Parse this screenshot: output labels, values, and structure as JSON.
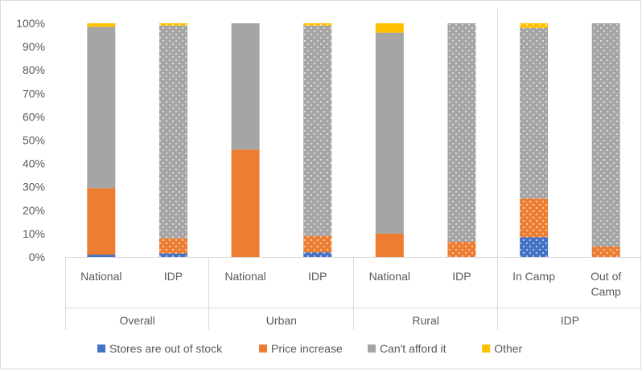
{
  "chart_data": {
    "type": "bar",
    "stacked": true,
    "percent_stacked": true,
    "ylim": [
      0,
      100
    ],
    "yticks": [
      "0%",
      "10%",
      "20%",
      "30%",
      "40%",
      "50%",
      "60%",
      "70%",
      "80%",
      "90%",
      "100%"
    ],
    "grid": false,
    "legend_position": "bottom",
    "groups": [
      {
        "label": "Overall",
        "categories": [
          {
            "label": "National",
            "pattern": false
          },
          {
            "label": "IDP",
            "pattern": true
          }
        ]
      },
      {
        "label": "Urban",
        "categories": [
          {
            "label": "National",
            "pattern": false
          },
          {
            "label": "IDP",
            "pattern": true
          }
        ]
      },
      {
        "label": "Rural",
        "categories": [
          {
            "label": "National",
            "pattern": false
          },
          {
            "label": "IDP",
            "pattern": true
          }
        ]
      },
      {
        "label": "IDP",
        "categories": [
          {
            "label": "In Camp",
            "pattern": true
          },
          {
            "label": "Out of Camp",
            "pattern": true
          }
        ]
      }
    ],
    "series": [
      {
        "name": "Stores are out of stock",
        "color": "#4472c4",
        "values": [
          1,
          1.5,
          0,
          2,
          0,
          0,
          8.5,
          0
        ]
      },
      {
        "name": "Price increase",
        "color": "#ed7d31",
        "values": [
          28.5,
          6.5,
          46,
          7,
          10,
          6.5,
          16.5,
          4.5
        ]
      },
      {
        "name": "Can't afford it",
        "color": "#a5a5a5",
        "values": [
          69,
          91,
          54,
          90,
          86,
          93.5,
          73,
          95.5
        ]
      },
      {
        "name": "Other",
        "color": "#ffc000",
        "values": [
          1.5,
          1,
          0,
          1,
          4,
          0,
          2,
          0
        ]
      }
    ]
  }
}
